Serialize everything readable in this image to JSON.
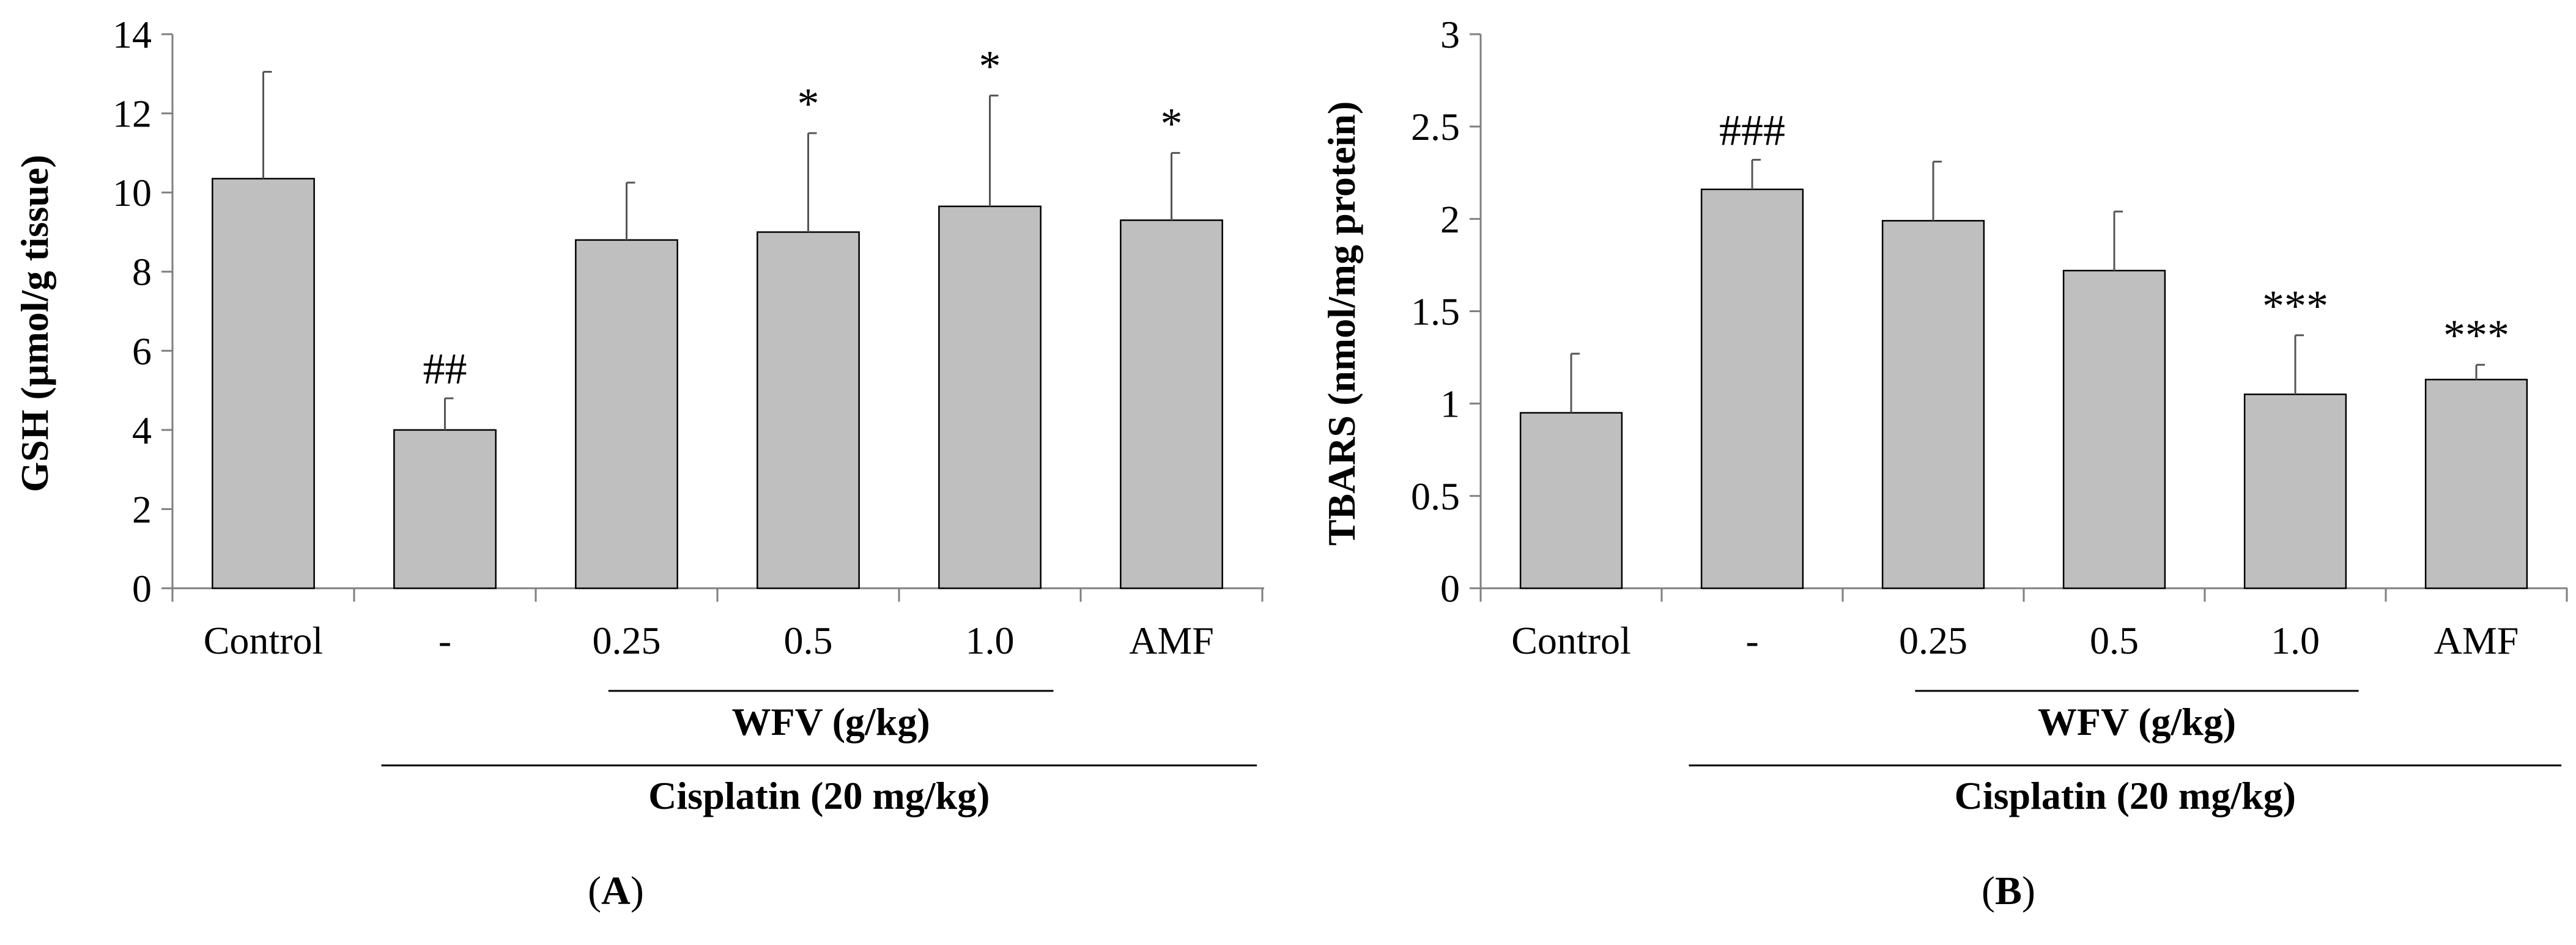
{
  "chart_data": [
    {
      "type": "bar",
      "panel_label": "(A)",
      "panel_letter": "A",
      "ylabel": "GSH (µmol/g tissue)",
      "ylim": [
        0,
        14
      ],
      "yticks": [
        "0",
        "2",
        "4",
        "6",
        "8",
        "10",
        "12",
        "14"
      ],
      "categories": [
        "Control",
        "-",
        "0.25",
        "0.5",
        "1.0",
        "AMF"
      ],
      "values": [
        10.35,
        4.0,
        8.8,
        9.0,
        9.65,
        9.3
      ],
      "errors": [
        2.7,
        0.8,
        1.45,
        2.5,
        2.8,
        1.7
      ],
      "annotations": [
        "",
        "##",
        "",
        "*",
        "*",
        "*"
      ],
      "group_labels": [
        "WFV (g/kg)",
        "Cisplatin (20 mg/kg)"
      ],
      "bar_color": "#bfbfbf",
      "grid": false
    },
    {
      "type": "bar",
      "panel_label": "(B)",
      "panel_letter": "B",
      "ylabel": "TBARS (nmol/mg protein)",
      "ylim": [
        0,
        3
      ],
      "yticks": [
        "0",
        "0.5",
        "1",
        "1.5",
        "2",
        "2.5",
        "3"
      ],
      "categories": [
        "Control",
        "-",
        "0.25",
        "0.5",
        "1.0",
        "AMF"
      ],
      "values": [
        0.95,
        2.16,
        1.99,
        1.72,
        1.05,
        1.13
      ],
      "errors": [
        0.32,
        0.16,
        0.32,
        0.32,
        0.32,
        0.08
      ],
      "annotations": [
        "",
        "###",
        "",
        "",
        "***",
        "***"
      ],
      "group_labels": [
        "WFV (g/kg)",
        "Cisplatin (20 mg/kg)"
      ],
      "bar_color": "#bfbfbf",
      "grid": false
    }
  ]
}
